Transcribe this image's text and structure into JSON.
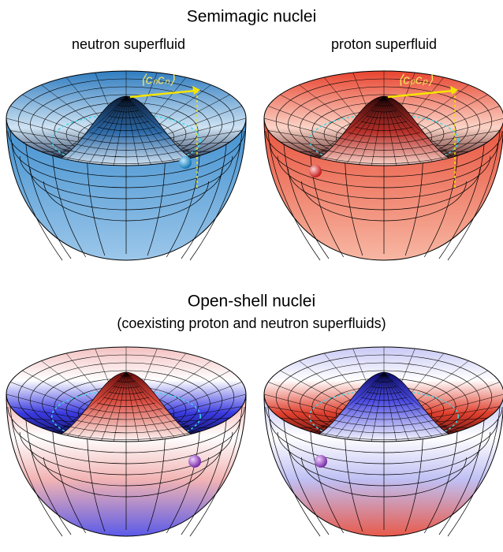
{
  "header": {
    "title": "Semimagic nuclei"
  },
  "panels": [
    {
      "label": "neutron superfluid",
      "annotation": "⟨cₙcₙ⟩"
    },
    {
      "label": "proton superfluid",
      "annotation": "⟨cₚcₚ⟩"
    }
  ],
  "section2": {
    "title": "Open-shell nuclei",
    "subtitle": "(coexisting proton and neutron superfluids)"
  }
}
